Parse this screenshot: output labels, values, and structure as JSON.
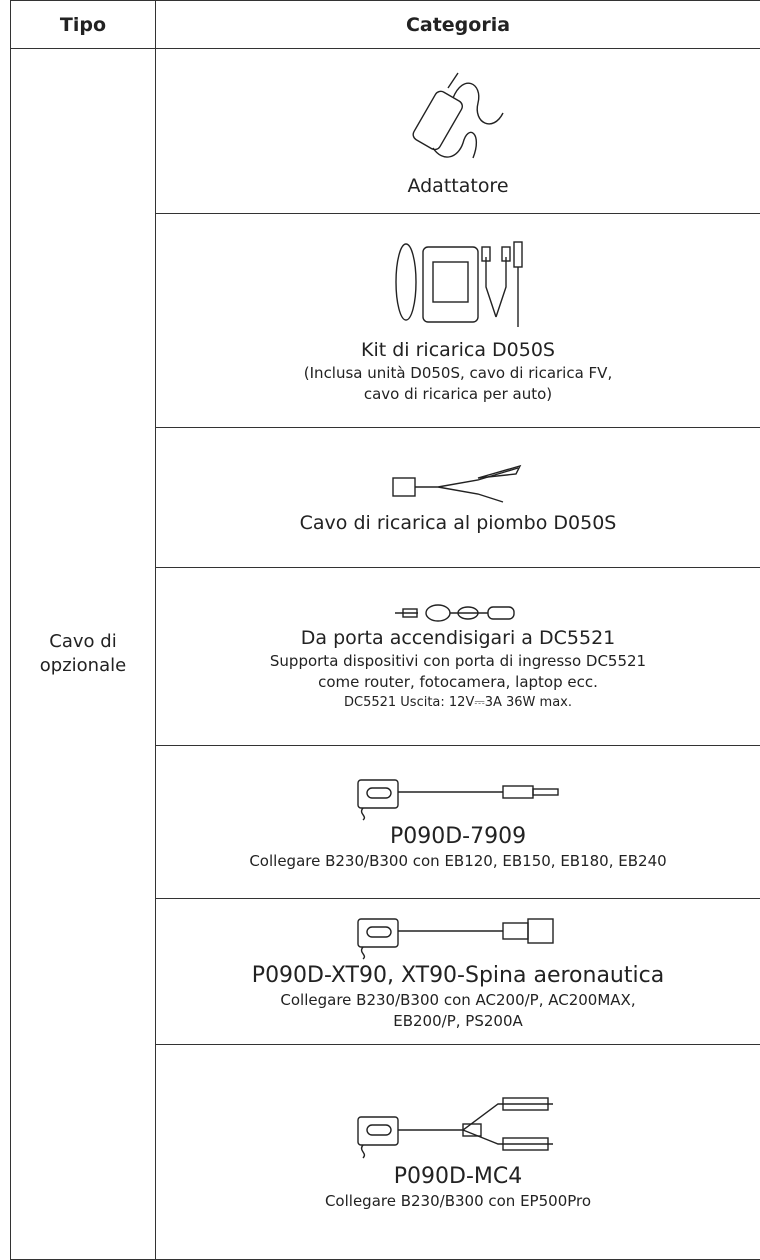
{
  "table": {
    "headers": [
      "Tipo",
      "Categoria"
    ],
    "type_lines": [
      "Cavo di",
      "opzionale"
    ],
    "rows": [
      {
        "name": "Adattatore",
        "lines": []
      },
      {
        "name": "Kit di ricarica D050S",
        "lines": [
          "(Inclusa unità D050S, cavo di ricarica FV,",
          "cavo di ricarica per auto)"
        ]
      },
      {
        "name": "Cavo di ricarica al piombo D050S",
        "lines": []
      },
      {
        "name": "Da porta accendisigari a DC5521",
        "lines": [
          "Supporta dispositivi con porta di ingresso DC5521",
          "come router, fotocamera, laptop ecc."
        ],
        "spec": "DC5521 Uscita: 12V⎓3A 36W max."
      },
      {
        "name": "P090D-7909",
        "lines": [
          "Collegare B230/B300 con EB120, EB150, EB180, EB240"
        ]
      },
      {
        "name": "P090D-XT90, XT90-Spina aeronautica",
        "lines": [
          "Collegare B230/B300 con AC200/P, AC200MAX,",
          "EB200/P, PS200A"
        ]
      },
      {
        "name": "P090D-MC4",
        "lines": [
          "Collegare B230/B300 con EP500Pro"
        ]
      }
    ]
  }
}
